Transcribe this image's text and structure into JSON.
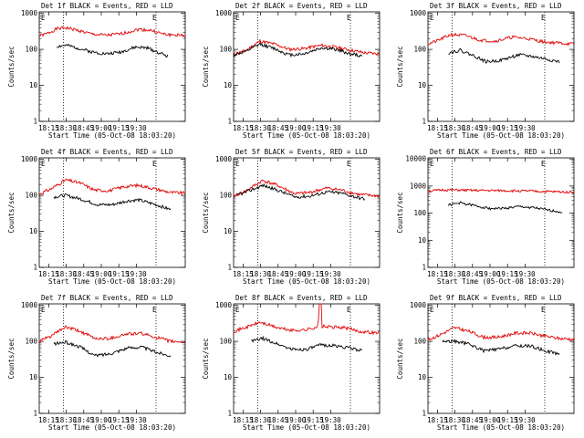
{
  "chart_data": [
    {
      "type": "line",
      "title": "Det 1f BLACK = Events, RED = LLD",
      "ylabel": "Counts/sec",
      "xlabel": "Start Time (05-Oct-08 18:03:20)",
      "x_ticks": [
        "18:15",
        "18:30",
        "18:45",
        "19:00",
        "19:15",
        "19:30"
      ],
      "y_ticks": [
        "1",
        "10",
        "100",
        "1000"
      ],
      "ylim": [
        1,
        1100
      ],
      "yscale": "log",
      "marker_left": "E",
      "marker_right": "E",
      "series": [
        {
          "color": "#e00000",
          "points": [
            [
              0,
              240
            ],
            [
              0.04,
              260
            ],
            [
              0.12,
              370
            ],
            [
              0.18,
              400
            ],
            [
              0.26,
              340
            ],
            [
              0.36,
              265
            ],
            [
              0.46,
              245
            ],
            [
              0.56,
              270
            ],
            [
              0.68,
              360
            ],
            [
              0.76,
              340
            ],
            [
              0.86,
              260
            ],
            [
              1,
              240
            ]
          ]
        },
        {
          "color": "#000000",
          "points": [
            [
              0.12,
              120
            ],
            [
              0.18,
              130
            ],
            [
              0.26,
              110
            ],
            [
              0.36,
              85
            ],
            [
              0.46,
              75
            ],
            [
              0.56,
              85
            ],
            [
              0.66,
              115
            ],
            [
              0.74,
              110
            ],
            [
              0.84,
              75
            ],
            [
              0.88,
              65
            ]
          ]
        }
      ]
    },
    {
      "type": "line",
      "title": "Det 2f BLACK = Events, RED = LLD",
      "ylabel": "Counts/sec",
      "xlabel": "Start Time (05-Oct-08 18:03:20)",
      "x_ticks": [
        "18:15",
        "18:30",
        "18:45",
        "19:00",
        "19:15",
        "19:30"
      ],
      "y_ticks": [
        "1",
        "10",
        "100",
        "1000"
      ],
      "ylim": [
        1,
        1100
      ],
      "yscale": "log",
      "marker_left": "E",
      "marker_right": "E",
      "series": [
        {
          "color": "#e00000",
          "points": [
            [
              0,
              75
            ],
            [
              0.08,
              90
            ],
            [
              0.18,
              170
            ],
            [
              0.28,
              140
            ],
            [
              0.38,
              100
            ],
            [
              0.48,
              105
            ],
            [
              0.6,
              130
            ],
            [
              0.7,
              115
            ],
            [
              0.8,
              95
            ],
            [
              0.9,
              80
            ],
            [
              1,
              75
            ]
          ]
        },
        {
          "color": "#000000",
          "points": [
            [
              0,
              70
            ],
            [
              0.08,
              85
            ],
            [
              0.18,
              140
            ],
            [
              0.28,
              105
            ],
            [
              0.38,
              70
            ],
            [
              0.48,
              75
            ],
            [
              0.6,
              110
            ],
            [
              0.7,
              100
            ],
            [
              0.8,
              75
            ],
            [
              0.88,
              65
            ]
          ]
        }
      ]
    },
    {
      "type": "line",
      "title": "Det 3f BLACK = Events, RED = LLD",
      "ylabel": "Counts/sec",
      "xlabel": "Start Time (05-Oct-08 18:03:20)",
      "x_ticks": [
        "18:15",
        "18:30",
        "18:45",
        "19:00",
        "19:15",
        "19:30"
      ],
      "y_ticks": [
        "1",
        "10",
        "100",
        "1000"
      ],
      "ylim": [
        1,
        1100
      ],
      "yscale": "log",
      "marker_left": "E",
      "marker_right": "E",
      "series": [
        {
          "color": "#e00000",
          "points": [
            [
              0,
              140
            ],
            [
              0.06,
              170
            ],
            [
              0.16,
              260
            ],
            [
              0.26,
              240
            ],
            [
              0.36,
              180
            ],
            [
              0.46,
              170
            ],
            [
              0.58,
              220
            ],
            [
              0.68,
              200
            ],
            [
              0.8,
              160
            ],
            [
              0.9,
              150
            ],
            [
              1,
              140
            ]
          ]
        },
        {
          "color": "#000000",
          "points": [
            [
              0.14,
              80
            ],
            [
              0.22,
              95
            ],
            [
              0.32,
              65
            ],
            [
              0.4,
              45
            ],
            [
              0.5,
              50
            ],
            [
              0.62,
              70
            ],
            [
              0.7,
              65
            ],
            [
              0.8,
              55
            ],
            [
              0.9,
              45
            ]
          ]
        }
      ]
    },
    {
      "type": "line",
      "title": "Det 4f BLACK = Events, RED = LLD",
      "ylabel": "Counts/sec",
      "xlabel": "Start Time (05-Oct-08 18:03:20)",
      "x_ticks": [
        "18:15",
        "18:30",
        "18:45",
        "19:00",
        "19:15",
        "19:30"
      ],
      "y_ticks": [
        "1",
        "10",
        "100",
        "1000"
      ],
      "ylim": [
        1,
        1100
      ],
      "yscale": "log",
      "marker_left": "E",
      "marker_right": "E",
      "series": [
        {
          "color": "#e00000",
          "points": [
            [
              0,
              110
            ],
            [
              0.08,
              150
            ],
            [
              0.18,
              270
            ],
            [
              0.28,
              220
            ],
            [
              0.38,
              140
            ],
            [
              0.48,
              135
            ],
            [
              0.58,
              175
            ],
            [
              0.68,
              190
            ],
            [
              0.8,
              150
            ],
            [
              0.9,
              120
            ],
            [
              1,
              115
            ]
          ]
        },
        {
          "color": "#000000",
          "points": [
            [
              0.1,
              90
            ],
            [
              0.18,
              100
            ],
            [
              0.28,
              80
            ],
            [
              0.4,
              55
            ],
            [
              0.5,
              55
            ],
            [
              0.6,
              70
            ],
            [
              0.68,
              75
            ],
            [
              0.8,
              55
            ],
            [
              0.9,
              40
            ]
          ]
        }
      ]
    },
    {
      "type": "line",
      "title": "Det 5f BLACK = Events, RED = LLD",
      "ylabel": "Counts/sec",
      "xlabel": "Start Time (05-Oct-08 18:03:20)",
      "x_ticks": [
        "18:15",
        "18:30",
        "18:45",
        "19:00",
        "19:15",
        "19:30"
      ],
      "y_ticks": [
        "1",
        "10",
        "100",
        "1000"
      ],
      "ylim": [
        1,
        1100
      ],
      "yscale": "log",
      "marker_left": "E",
      "marker_right": "E",
      "series": [
        {
          "color": "#e00000",
          "points": [
            [
              0,
              95
            ],
            [
              0.08,
              130
            ],
            [
              0.2,
              260
            ],
            [
              0.3,
              190
            ],
            [
              0.42,
              110
            ],
            [
              0.52,
              120
            ],
            [
              0.64,
              160
            ],
            [
              0.74,
              140
            ],
            [
              0.86,
              105
            ],
            [
              1,
              95
            ]
          ]
        },
        {
          "color": "#000000",
          "points": [
            [
              0.02,
              100
            ],
            [
              0.1,
              130
            ],
            [
              0.2,
              190
            ],
            [
              0.3,
              140
            ],
            [
              0.42,
              90
            ],
            [
              0.52,
              95
            ],
            [
              0.64,
              125
            ],
            [
              0.74,
              115
            ],
            [
              0.86,
              85
            ],
            [
              0.9,
              80
            ]
          ]
        }
      ]
    },
    {
      "type": "line",
      "title": "Det 6f BLACK = Events, RED = LLD",
      "ylabel": "Counts/sec",
      "xlabel": "Start Time (05-Oct-08 18:03:20)",
      "x_ticks": [
        "18:15",
        "18:30",
        "18:45",
        "19:00",
        "19:15",
        "19:30"
      ],
      "y_ticks": [
        "1",
        "10",
        "100",
        "1000",
        "10000"
      ],
      "ylim": [
        1,
        11000
      ],
      "yscale": "log",
      "marker_left": "E",
      "marker_right": "E",
      "series": [
        {
          "color": "#e00000",
          "points": [
            [
              0,
              650
            ],
            [
              0.1,
              720
            ],
            [
              0.2,
              710
            ],
            [
              0.3,
              690
            ],
            [
              0.5,
              680
            ],
            [
              0.7,
              650
            ],
            [
              0.85,
              620
            ],
            [
              1,
              600
            ]
          ]
        },
        {
          "color": "#000000",
          "points": [
            [
              0.14,
              200
            ],
            [
              0.22,
              240
            ],
            [
              0.32,
              190
            ],
            [
              0.42,
              150
            ],
            [
              0.52,
              150
            ],
            [
              0.62,
              175
            ],
            [
              0.72,
              160
            ],
            [
              0.82,
              130
            ],
            [
              0.92,
              110
            ]
          ]
        }
      ]
    },
    {
      "type": "line",
      "title": "Det 7f BLACK = Events, RED = LLD",
      "ylabel": "Counts/sec",
      "xlabel": "Start Time (05-Oct-08 18:03:20)",
      "x_ticks": [
        "18:15",
        "18:30",
        "18:45",
        "19:00",
        "19:15",
        "19:30"
      ],
      "y_ticks": [
        "1",
        "10",
        "100",
        "1000"
      ],
      "ylim": [
        1,
        1100
      ],
      "yscale": "log",
      "marker_left": "E",
      "marker_right": "E",
      "series": [
        {
          "color": "#e00000",
          "points": [
            [
              0,
              100
            ],
            [
              0.08,
              140
            ],
            [
              0.18,
              250
            ],
            [
              0.28,
              190
            ],
            [
              0.38,
              120
            ],
            [
              0.48,
              120
            ],
            [
              0.6,
              160
            ],
            [
              0.7,
              165
            ],
            [
              0.8,
              130
            ],
            [
              0.9,
              100
            ],
            [
              1,
              95
            ]
          ]
        },
        {
          "color": "#000000",
          "points": [
            [
              0.1,
              85
            ],
            [
              0.18,
              95
            ],
            [
              0.28,
              70
            ],
            [
              0.38,
              40
            ],
            [
              0.48,
              45
            ],
            [
              0.6,
              65
            ],
            [
              0.7,
              70
            ],
            [
              0.8,
              50
            ],
            [
              0.9,
              40
            ]
          ]
        }
      ]
    },
    {
      "type": "line",
      "title": "Det 8f BLACK = Events, RED = LLD",
      "ylabel": "Counts/sec",
      "xlabel": "Start Time (05-Oct-08 18:03:20)",
      "x_ticks": [
        "18:15",
        "18:30",
        "18:45",
        "19:00",
        "19:15",
        "19:30"
      ],
      "y_ticks": [
        "1",
        "10",
        "100",
        "1000"
      ],
      "ylim": [
        1,
        1100
      ],
      "yscale": "log",
      "marker_left": "E",
      "marker_right": "E",
      "series": [
        {
          "color": "#e00000",
          "points": [
            [
              0,
              190
            ],
            [
              0.08,
              240
            ],
            [
              0.18,
              340
            ],
            [
              0.3,
              240
            ],
            [
              0.4,
              200
            ],
            [
              0.5,
              210
            ],
            [
              0.58,
              260
            ],
            [
              0.585,
              1100
            ],
            [
              0.6,
              1100
            ],
            [
              0.605,
              260
            ],
            [
              0.66,
              250
            ],
            [
              0.76,
              240
            ],
            [
              0.86,
              190
            ],
            [
              1,
              170
            ]
          ]
        },
        {
          "color": "#000000",
          "points": [
            [
              0.12,
              100
            ],
            [
              0.2,
              120
            ],
            [
              0.3,
              85
            ],
            [
              0.4,
              60
            ],
            [
              0.5,
              60
            ],
            [
              0.6,
              80
            ],
            [
              0.7,
              75
            ],
            [
              0.8,
              65
            ],
            [
              0.88,
              55
            ]
          ]
        }
      ]
    },
    {
      "type": "line",
      "title": "Det 9f BLACK = Events, RED = LLD",
      "ylabel": "Counts/sec",
      "xlabel": "Start Time (05-Oct-08 18:03:20)",
      "x_ticks": [
        "18:15",
        "18:30",
        "18:45",
        "19:00",
        "19:15",
        "19:30"
      ],
      "y_ticks": [
        "1",
        "10",
        "100",
        "1000"
      ],
      "ylim": [
        1,
        1100
      ],
      "yscale": "log",
      "marker_left": "E",
      "marker_right": "E",
      "series": [
        {
          "color": "#e00000",
          "points": [
            [
              0,
              110
            ],
            [
              0.08,
              150
            ],
            [
              0.18,
              240
            ],
            [
              0.28,
              190
            ],
            [
              0.38,
              130
            ],
            [
              0.48,
              130
            ],
            [
              0.6,
              170
            ],
            [
              0.7,
              170
            ],
            [
              0.8,
              140
            ],
            [
              0.9,
              120
            ],
            [
              1,
              115
            ]
          ]
        },
        {
          "color": "#000000",
          "points": [
            [
              0.1,
              100
            ],
            [
              0.18,
              100
            ],
            [
              0.28,
              85
            ],
            [
              0.38,
              55
            ],
            [
              0.48,
              60
            ],
            [
              0.6,
              75
            ],
            [
              0.7,
              75
            ],
            [
              0.8,
              55
            ],
            [
              0.9,
              45
            ]
          ]
        }
      ]
    }
  ]
}
